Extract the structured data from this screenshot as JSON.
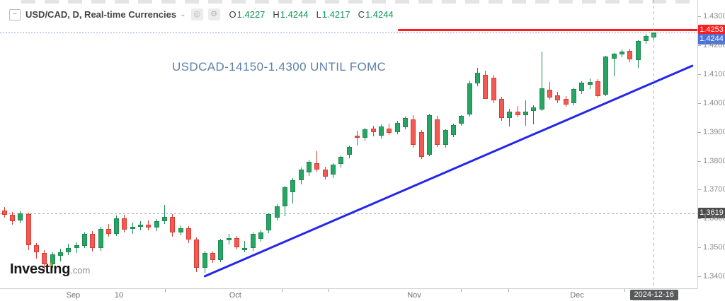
{
  "header": {
    "symbol": "USD/CAD, D, Real-time Currencies",
    "ohlc": [
      {
        "label": "O",
        "value": "1.4227"
      },
      {
        "label": "H",
        "value": "1.4244"
      },
      {
        "label": "L",
        "value": "1.4217"
      },
      {
        "label": "C",
        "value": "1.4244"
      }
    ]
  },
  "icons": {
    "collapse": "−",
    "dropdown_caret": "⌄",
    "snapshot": "◎",
    "settings": "⚙"
  },
  "annotation": {
    "text": "USDCAD-14150-1.4300 UNTIL FOMC",
    "color": "#5d81a8"
  },
  "logo": {
    "part1": "Invest",
    "part2": "i",
    "part3": "ng",
    "suffix": ".com"
  },
  "price_axis": {
    "labels": [
      "1.4300",
      "1.4200",
      "1.4100",
      "1.4000",
      "1.3900",
      "1.3800",
      "1.3700",
      "1.3600",
      "1.3500",
      "1.3400"
    ],
    "badges": {
      "resistance": {
        "text": "1.4253",
        "color": "#fe1d1d"
      },
      "last": {
        "text": "1.4244",
        "color": "#4a72d9"
      },
      "reference": {
        "text": "1.3619",
        "color": "#4a4a4a"
      }
    }
  },
  "time_axis": {
    "labels": [
      {
        "text": "Sep",
        "i": 8.6
      },
      {
        "text": "10",
        "i": 14.3
      },
      {
        "text": "Oct",
        "i": 28.8
      },
      {
        "text": "Nov",
        "i": 51.1
      },
      {
        "text": "Dec",
        "i": 71.4
      }
    ],
    "minor_ticks_i": [
      20.0,
      34.6,
      40.4,
      56.9,
      62.8,
      77.3
    ],
    "date_badge": "2024-12-16"
  },
  "chart_data": {
    "type": "candlestick",
    "symbol": "USD/CAD",
    "timeframe": "D",
    "title_annotation": "USDCAD-14150-1.4300 UNTIL FOMC",
    "y_axis_ticks": [
      1.43,
      1.42,
      1.41,
      1.4,
      1.39,
      1.38,
      1.37,
      1.36,
      1.35,
      1.34
    ],
    "x_axis_labels": [
      "Sep",
      "10",
      "Oct",
      "Nov",
      "Dec"
    ],
    "last_date": "2024-12-16",
    "levels": {
      "resistance": 1.4253,
      "last_price": 1.4244,
      "reference": 1.3619
    },
    "red_line_start_i": 49.1,
    "crosshair_i": 81,
    "trendline": {
      "i1": 24.9,
      "p1": 1.3398,
      "i2": 85.9,
      "p2": 1.4129
    },
    "candles": [
      [
        1.3628,
        1.364,
        1.3602,
        1.3612
      ],
      [
        1.3612,
        1.3622,
        1.3578,
        1.3592
      ],
      [
        1.3592,
        1.3626,
        1.3584,
        1.3618
      ],
      [
        1.3616,
        1.3621,
        1.349,
        1.3507
      ],
      [
        1.3507,
        1.3516,
        1.3462,
        1.3482
      ],
      [
        1.3482,
        1.349,
        1.3419,
        1.3442
      ],
      [
        1.3442,
        1.3484,
        1.343,
        1.3475
      ],
      [
        1.347,
        1.3496,
        1.3451,
        1.3483
      ],
      [
        1.3483,
        1.3512,
        1.3474,
        1.3499
      ],
      [
        1.3499,
        1.3517,
        1.3481,
        1.3509
      ],
      [
        1.3505,
        1.3553,
        1.3497,
        1.3548
      ],
      [
        1.3548,
        1.3556,
        1.3486,
        1.3497
      ],
      [
        1.3497,
        1.3571,
        1.3489,
        1.3563
      ],
      [
        1.3563,
        1.3582,
        1.3536,
        1.3546
      ],
      [
        1.3546,
        1.3611,
        1.3539,
        1.3602
      ],
      [
        1.3602,
        1.3613,
        1.3553,
        1.3563
      ],
      [
        1.3563,
        1.3586,
        1.3547,
        1.3571
      ],
      [
        1.3571,
        1.3591,
        1.3559,
        1.3579
      ],
      [
        1.3579,
        1.3593,
        1.3558,
        1.3568
      ],
      [
        1.3568,
        1.3599,
        1.3557,
        1.359
      ],
      [
        1.359,
        1.3648,
        1.3581,
        1.3606
      ],
      [
        1.3606,
        1.3616,
        1.3538,
        1.3552
      ],
      [
        1.3552,
        1.3576,
        1.3541,
        1.3566
      ],
      [
        1.3566,
        1.3573,
        1.3516,
        1.3528
      ],
      [
        1.3528,
        1.3536,
        1.3416,
        1.343
      ],
      [
        1.343,
        1.3489,
        1.3413,
        1.3481
      ],
      [
        1.3481,
        1.3487,
        1.3446,
        1.3456
      ],
      [
        1.3456,
        1.3531,
        1.3449,
        1.3526
      ],
      [
        1.3526,
        1.3546,
        1.3511,
        1.3533
      ],
      [
        1.3533,
        1.3539,
        1.3493,
        1.35
      ],
      [
        1.349,
        1.3523,
        1.3483,
        1.3499
      ],
      [
        1.3499,
        1.3551,
        1.3487,
        1.3547
      ],
      [
        1.353,
        1.3561,
        1.3521,
        1.3553
      ],
      [
        1.3558,
        1.3619,
        1.3549,
        1.3615
      ],
      [
        1.3603,
        1.3649,
        1.3594,
        1.3643
      ],
      [
        1.3643,
        1.3713,
        1.3608,
        1.3709
      ],
      [
        1.3692,
        1.3739,
        1.3653,
        1.3733
      ],
      [
        1.3733,
        1.3776,
        1.3718,
        1.377
      ],
      [
        1.376,
        1.3801,
        1.3747,
        1.3796
      ],
      [
        1.3792,
        1.3834,
        1.3763,
        1.377
      ],
      [
        1.377,
        1.3779,
        1.3736,
        1.3745
      ],
      [
        1.3752,
        1.3791,
        1.3739,
        1.3786
      ],
      [
        1.3789,
        1.3819,
        1.3777,
        1.3813
      ],
      [
        1.3821,
        1.3853,
        1.3809,
        1.3848
      ],
      [
        1.3888,
        1.3905,
        1.3852,
        1.388
      ],
      [
        1.388,
        1.3914,
        1.3869,
        1.3908
      ],
      [
        1.3912,
        1.3922,
        1.3884,
        1.3898
      ],
      [
        1.3886,
        1.3926,
        1.3877,
        1.3919
      ],
      [
        1.3912,
        1.3928,
        1.3888,
        1.3896
      ],
      [
        1.3899,
        1.3938,
        1.3891,
        1.3932
      ],
      [
        1.3916,
        1.3953,
        1.3908,
        1.3948
      ],
      [
        1.3943,
        1.3958,
        1.3846,
        1.3854
      ],
      [
        1.3898,
        1.3906,
        1.3806,
        1.3813
      ],
      [
        1.3821,
        1.3963,
        1.3815,
        1.3959
      ],
      [
        1.3943,
        1.3955,
        1.3848,
        1.3854
      ],
      [
        1.3854,
        1.3908,
        1.3846,
        1.3906
      ],
      [
        1.389,
        1.3928,
        1.3882,
        1.3924
      ],
      [
        1.3929,
        1.3958,
        1.392,
        1.3955
      ],
      [
        1.3959,
        1.4078,
        1.3952,
        1.4068
      ],
      [
        1.4068,
        1.4122,
        1.4058,
        1.4105
      ],
      [
        1.4097,
        1.4112,
        1.4072,
        1.4015
      ],
      [
        1.4088,
        1.4098,
        1.3998,
        1.4008
      ],
      [
        1.4013,
        1.4022,
        1.3938,
        1.3947
      ],
      [
        1.3947,
        1.398,
        1.3918,
        1.3971
      ],
      [
        1.3971,
        1.399,
        1.395,
        1.3958
      ],
      [
        1.3958,
        1.4008,
        1.3921,
        1.397
      ],
      [
        1.3971,
        1.3992,
        1.3927,
        1.3985
      ],
      [
        1.3978,
        1.4178,
        1.3972,
        1.4051
      ],
      [
        1.4046,
        1.4072,
        1.4012,
        1.4018
      ],
      [
        1.4026,
        1.4038,
        1.4,
        1.4008
      ],
      [
        1.4013,
        1.4025,
        1.3988,
        1.3995
      ],
      [
        1.4,
        1.4052,
        1.3992,
        1.4048
      ],
      [
        1.404,
        1.4075,
        1.4032,
        1.407
      ],
      [
        1.4062,
        1.4085,
        1.4048,
        1.4073
      ],
      [
        1.4075,
        1.4082,
        1.4018,
        1.4024
      ],
      [
        1.4029,
        1.4163,
        1.4023,
        1.416
      ],
      [
        1.4154,
        1.4174,
        1.4093,
        1.417
      ],
      [
        1.4168,
        1.4185,
        1.4158,
        1.4178
      ],
      [
        1.418,
        1.4188,
        1.4142,
        1.4152
      ],
      [
        1.4148,
        1.4218,
        1.4122,
        1.4214
      ],
      [
        1.4215,
        1.424,
        1.4205,
        1.4232
      ],
      [
        1.4227,
        1.4244,
        1.4217,
        1.4244
      ]
    ]
  }
}
